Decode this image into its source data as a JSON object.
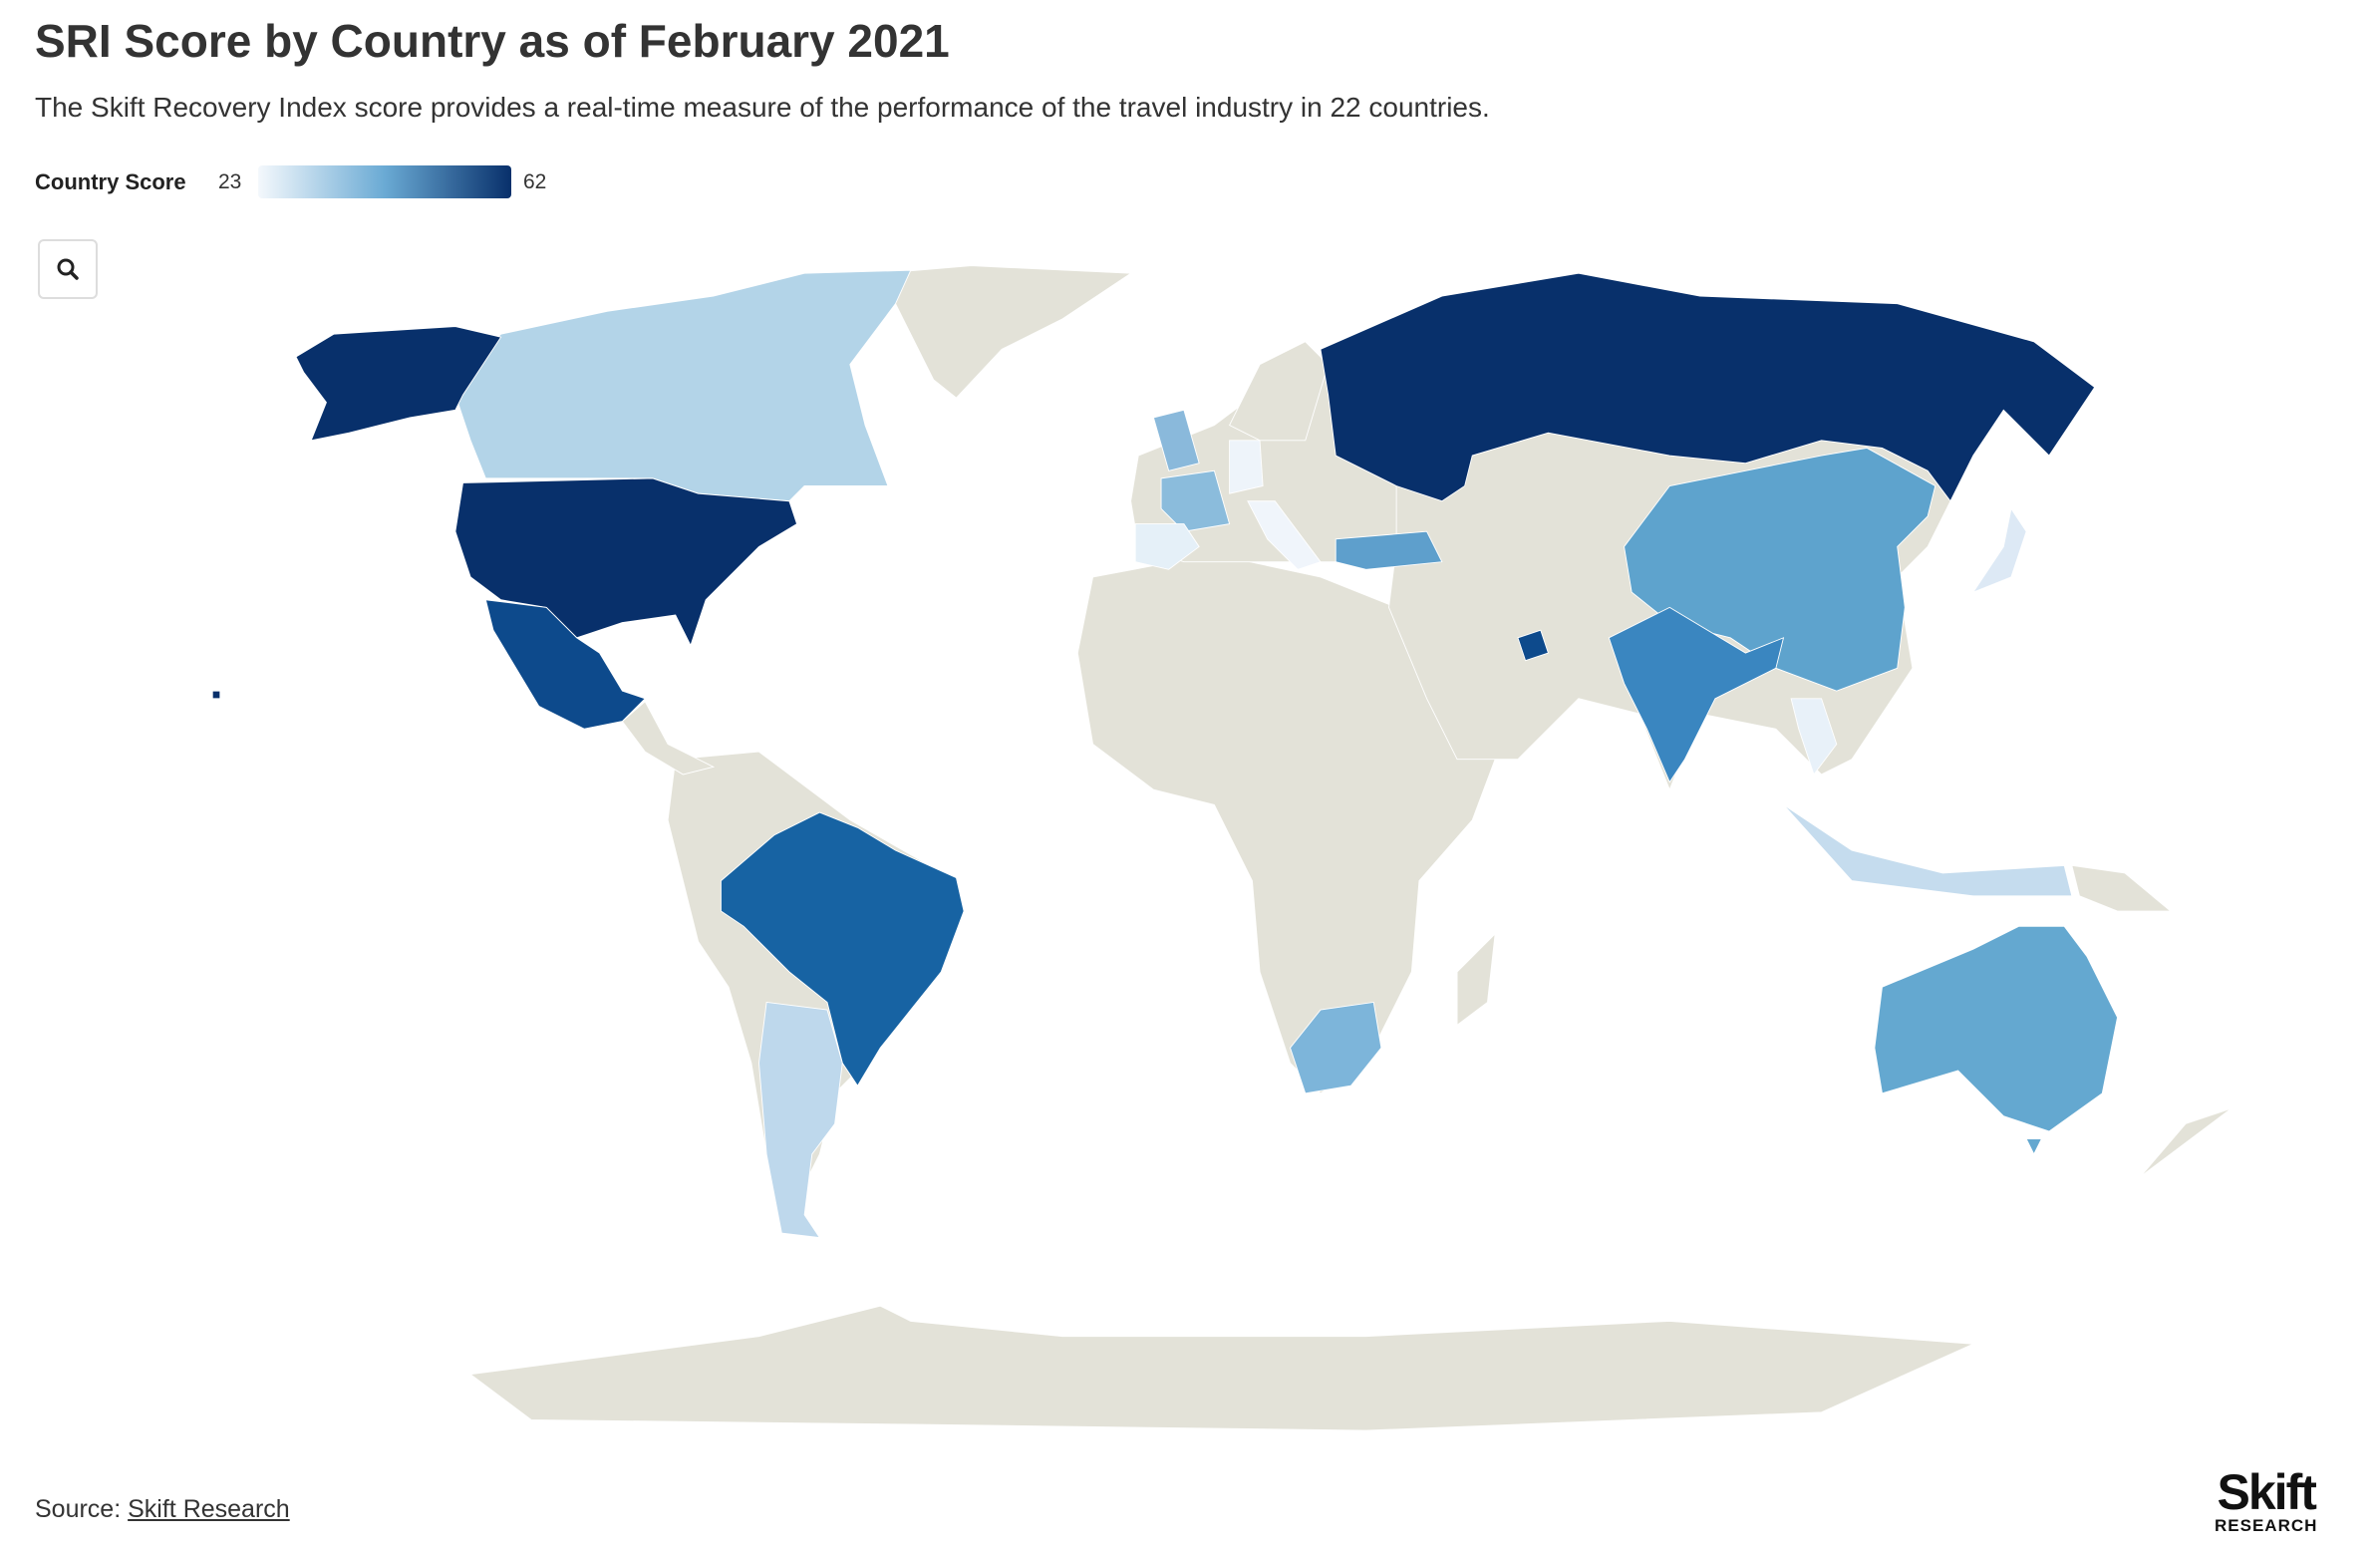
{
  "header": {
    "title": "SRI Score by Country as of February 2021",
    "subtitle": "The Skift Recovery Index score provides a real-time measure of the performance of the travel industry in 22 countries."
  },
  "legend": {
    "label": "Country Score",
    "min": 23,
    "max": 62
  },
  "footer": {
    "source_label": "Source:",
    "source_link": "Skift Research"
  },
  "logo": {
    "name": "Skift",
    "sub": "RESEARCH"
  }
}
